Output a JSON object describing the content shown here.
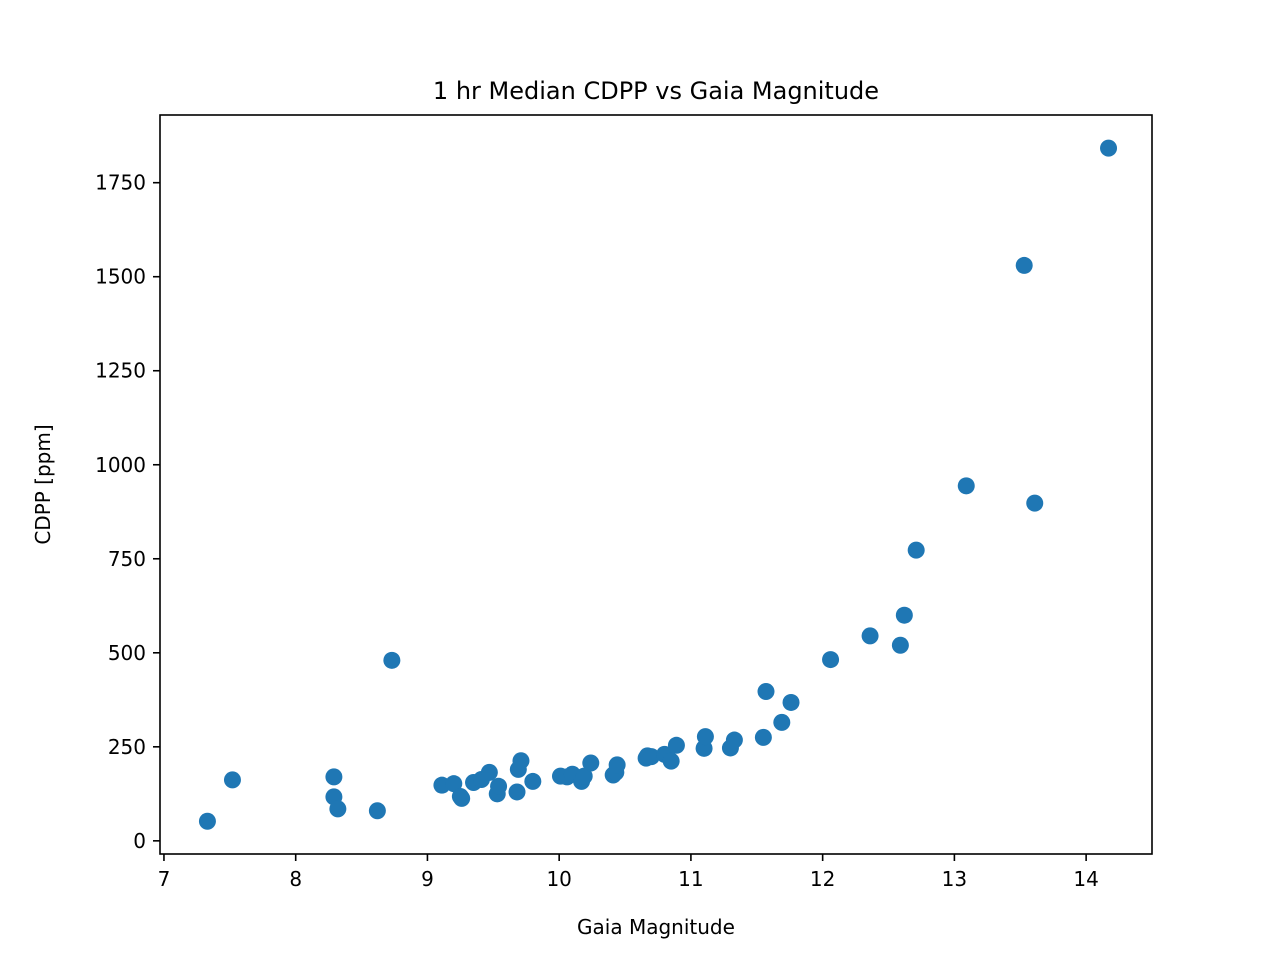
{
  "chart_data": {
    "type": "scatter",
    "title": "1 hr Median CDPP vs Gaia Magnitude",
    "xlabel": "Gaia Magnitude",
    "ylabel": "CDPP [ppm]",
    "xlim": [
      6.97,
      14.5
    ],
    "ylim": [
      -35,
      1930
    ],
    "xticks": [
      7,
      8,
      9,
      10,
      11,
      12,
      13,
      14
    ],
    "yticks": [
      0,
      250,
      500,
      750,
      1000,
      1250,
      1500,
      1750
    ],
    "grid": false,
    "marker_color": "#1f77b4",
    "series": [
      {
        "points": [
          [
            7.33,
            52
          ],
          [
            7.52,
            162
          ],
          [
            8.29,
            170
          ],
          [
            8.29,
            117
          ],
          [
            8.32,
            85
          ],
          [
            8.62,
            80
          ],
          [
            8.73,
            480
          ],
          [
            9.11,
            148
          ],
          [
            9.2,
            152
          ],
          [
            9.25,
            118
          ],
          [
            9.26,
            113
          ],
          [
            9.35,
            155
          ],
          [
            9.41,
            163
          ],
          [
            9.47,
            182
          ],
          [
            9.53,
            125
          ],
          [
            9.54,
            145
          ],
          [
            9.68,
            130
          ],
          [
            9.69,
            190
          ],
          [
            9.71,
            213
          ],
          [
            9.8,
            158
          ],
          [
            10.01,
            172
          ],
          [
            10.06,
            170
          ],
          [
            10.1,
            177
          ],
          [
            10.17,
            158
          ],
          [
            10.19,
            172
          ],
          [
            10.24,
            207
          ],
          [
            10.41,
            175
          ],
          [
            10.43,
            182
          ],
          [
            10.44,
            202
          ],
          [
            10.66,
            220
          ],
          [
            10.67,
            226
          ],
          [
            10.7,
            224
          ],
          [
            10.8,
            230
          ],
          [
            10.85,
            212
          ],
          [
            10.89,
            254
          ],
          [
            11.1,
            246
          ],
          [
            11.11,
            277
          ],
          [
            11.3,
            247
          ],
          [
            11.33,
            268
          ],
          [
            11.55,
            275
          ],
          [
            11.57,
            397
          ],
          [
            11.69,
            315
          ],
          [
            11.76,
            368
          ],
          [
            12.06,
            482
          ],
          [
            12.36,
            545
          ],
          [
            12.59,
            520
          ],
          [
            12.62,
            600
          ],
          [
            12.71,
            773
          ],
          [
            13.09,
            944
          ],
          [
            13.53,
            1530
          ],
          [
            13.61,
            898
          ],
          [
            14.17,
            1842
          ]
        ]
      }
    ]
  }
}
